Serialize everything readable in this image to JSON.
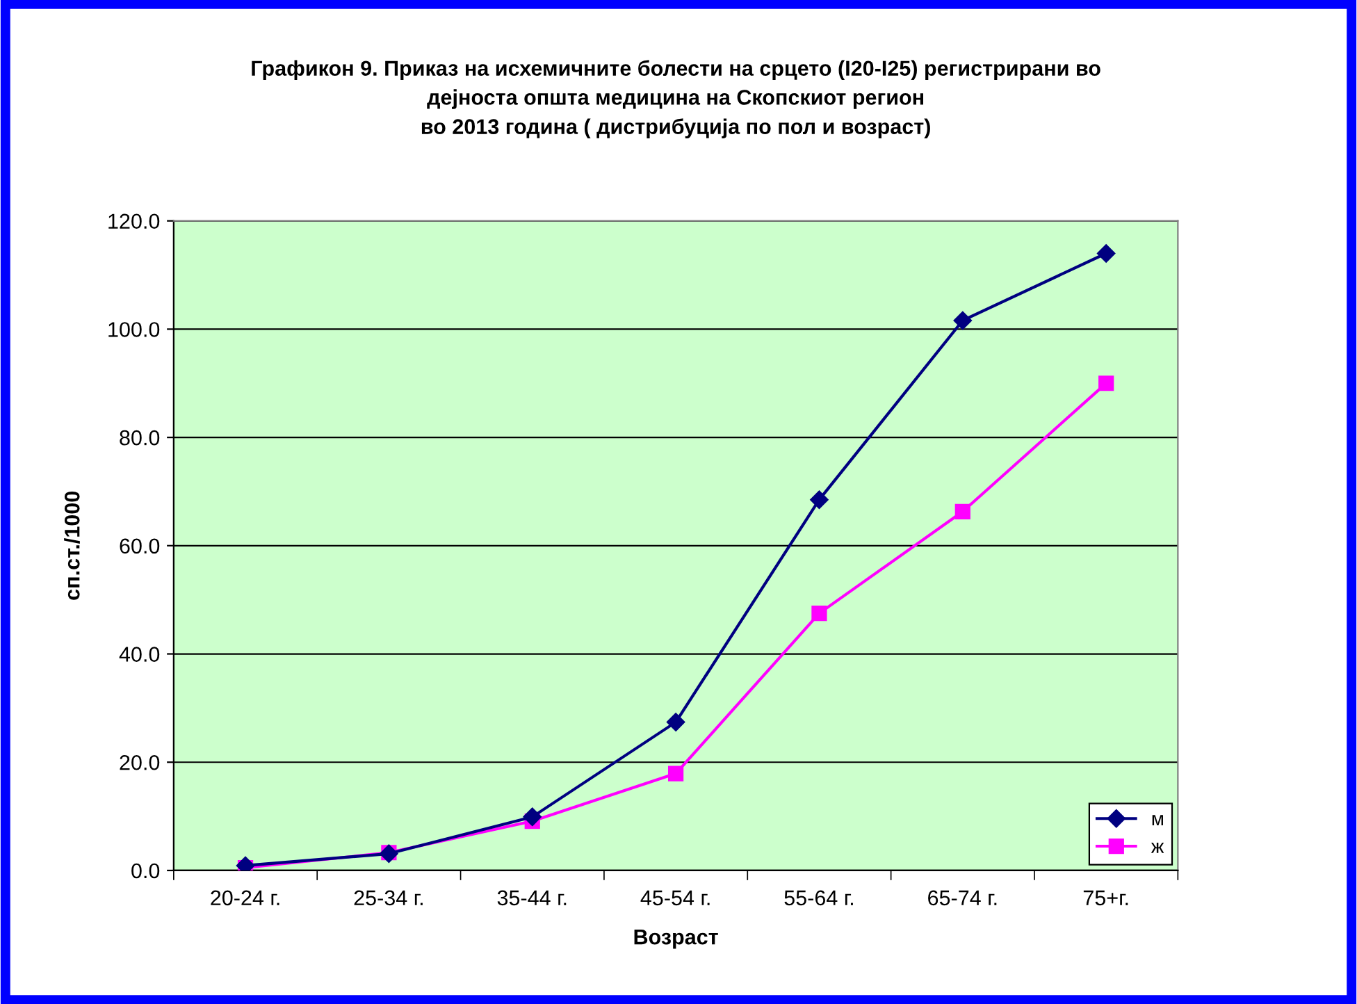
{
  "chart_data": {
    "type": "line",
    "title": "Графикон 9. Приказ на исхемичните болести на срцето (I20-I25) регистрирани во\nдејноста општа медицина на Скопскиот регион\nво 2013 година ( дистрибуција по пол и возраст)",
    "xlabel": "Возраст",
    "ylabel": "сп.ст./1000",
    "categories": [
      "20-24 г.",
      "25-34 г.",
      "35-44 г.",
      "45-54 г.",
      "55-64 г.",
      "65-74 г.",
      "75+г."
    ],
    "series": [
      {
        "name": "м",
        "color": "#000080",
        "marker": "diamond",
        "values": [
          0.9,
          3.1,
          9.9,
          27.4,
          68.5,
          101.6,
          114.0
        ]
      },
      {
        "name": "ж",
        "color": "#ff00ff",
        "marker": "square",
        "values": [
          0.5,
          3.3,
          9.1,
          17.9,
          47.5,
          66.3,
          90.0
        ]
      }
    ],
    "ylim": [
      0,
      120
    ],
    "yticks": [
      {
        "value": 0,
        "label": "0.0"
      },
      {
        "value": 20,
        "label": "20.0"
      },
      {
        "value": 40,
        "label": "40.0"
      },
      {
        "value": 60,
        "label": "60.0"
      },
      {
        "value": 80,
        "label": "80.0"
      },
      {
        "value": 100,
        "label": "100.0"
      },
      {
        "value": 120,
        "label": "120.0"
      }
    ],
    "grid": "y",
    "legend": "bottom right",
    "line_style": "solid"
  }
}
